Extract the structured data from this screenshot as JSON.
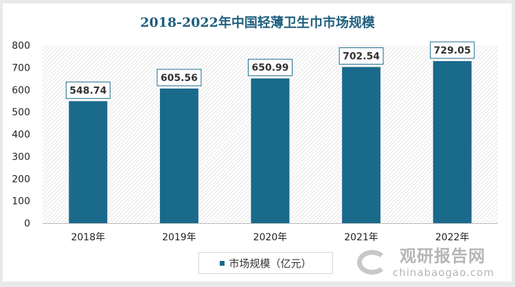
{
  "chart_data": {
    "type": "bar",
    "title": "2018-2022年中国轻薄卫生巾市场规模",
    "categories": [
      "2018年",
      "2019年",
      "2020年",
      "2021年",
      "2022年"
    ],
    "series": [
      {
        "name": "市场规模（亿元）",
        "values": [
          548.74,
          605.56,
          650.99,
          702.54,
          729.05
        ]
      }
    ],
    "data_labels": [
      "548.74",
      "605.56",
      "650.99",
      "702.54",
      "729.05"
    ],
    "yticks": [
      "0",
      "100",
      "200",
      "300",
      "400",
      "500",
      "600",
      "700",
      "800"
    ],
    "ylim": [
      0,
      800
    ],
    "legend_position": "bottom",
    "grid": false,
    "bar_color": "#1a6a8c",
    "title_color": "#1f5f7e"
  },
  "watermark": {
    "cn": "观研报告网",
    "en": "chinabaogao.com"
  }
}
